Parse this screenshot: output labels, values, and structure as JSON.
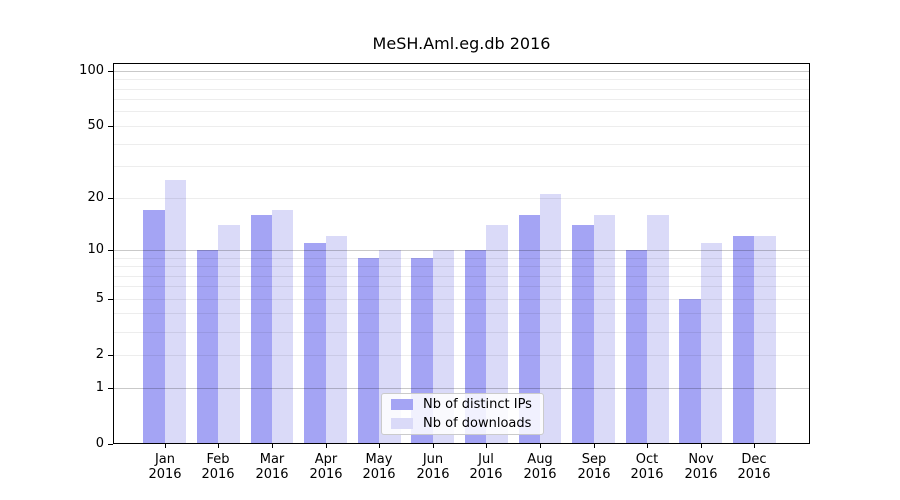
{
  "title": "MeSH.Aml.eg.db 2016",
  "chart_data": {
    "type": "bar",
    "title": "MeSH.Aml.eg.db 2016",
    "categories": [
      "Jan 2016",
      "Feb 2016",
      "Mar 2016",
      "Apr 2016",
      "May 2016",
      "Jun 2016",
      "Jul 2016",
      "Aug 2016",
      "Sep 2016",
      "Oct 2016",
      "Nov 2016",
      "Dec 2016"
    ],
    "x_tick_month_line": [
      "Jan",
      "Feb",
      "Mar",
      "Apr",
      "May",
      "Jun",
      "Jul",
      "Aug",
      "Sep",
      "Oct",
      "Nov",
      "Dec"
    ],
    "x_tick_year_line": "2016",
    "series": [
      {
        "name": "Nb of distinct IPs",
        "color": "#a4a4f4",
        "values": [
          17,
          10,
          16,
          11,
          9,
          9,
          10,
          16,
          14,
          10,
          5,
          12
        ]
      },
      {
        "name": "Nb of downloads",
        "color": "#dadaf8",
        "values": [
          25,
          14,
          17,
          12,
          10,
          10,
          14,
          21,
          16,
          16,
          11,
          12
        ]
      }
    ],
    "xlabel": "",
    "ylabel": "",
    "y_scale": "log10(value+1)",
    "ylim": [
      0,
      110
    ],
    "y_tick_values": [
      100,
      50,
      20,
      10,
      5,
      2,
      1,
      0
    ],
    "y_tick_labels": [
      "100",
      "50",
      "20",
      "10",
      "5",
      "2",
      "1",
      "0"
    ],
    "y_grid_major": [
      1,
      10,
      100
    ],
    "y_grid_minor": [
      2,
      3,
      4,
      5,
      6,
      7,
      8,
      9,
      20,
      30,
      40,
      50,
      60,
      70,
      80,
      90
    ],
    "grid": true,
    "legend_position": "lower center"
  },
  "colors": {
    "background": "#ffffff",
    "axis": "#000000",
    "grid_major": "rgba(0,0,0,0.21)",
    "grid_minor": "rgba(0,0,0,0.07)",
    "bar_distinct_ips": "#a4a4f4",
    "bar_downloads": "#dadaf8"
  }
}
